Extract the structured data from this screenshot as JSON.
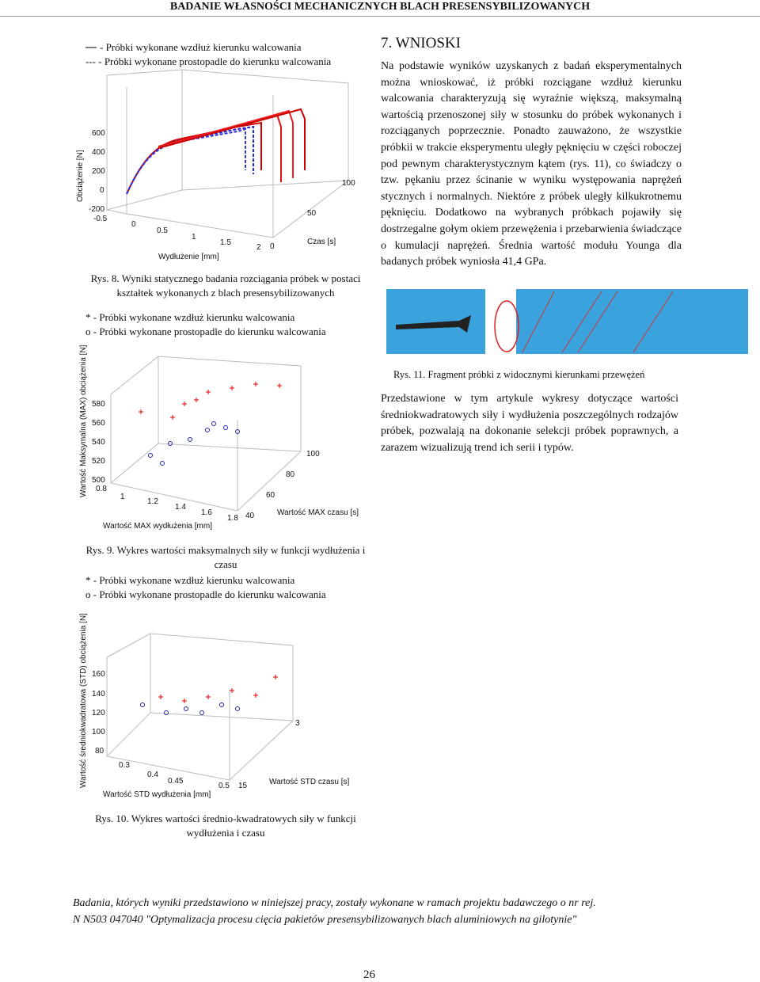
{
  "header": "BADANIE WŁASNOŚCI MECHANICZNYCH BLACH PRESENSYBILIZOWANYCH",
  "figure8": {
    "legend": [
      "- Próbki wykonane wzdłuż kierunku walcowania",
      "--- - Próbki wykonane prostopadle do kierunku walcowania"
    ],
    "y_label": "Obciążenie [N]",
    "x_label": "Wydłużenie [mm]",
    "z_label": "Czas [s]",
    "y_ticks": [
      "600",
      "400",
      "200",
      "0",
      "-200"
    ],
    "x_ticks": [
      "-0.5",
      "0",
      "0.5",
      "1",
      "1.5",
      "2"
    ],
    "z_ticks": [
      "0",
      "50",
      "100"
    ],
    "caption": "Rys. 8. Wyniki statycznego badania rozciągania próbek w postaci kształtek wykonanych z blach presensybilizowanych"
  },
  "figure9": {
    "legend": [
      "* - Próbki wykonane wzdłuż kierunku walcowania",
      "o - Próbki wykonane prostopadle do kierunku walcowania"
    ],
    "y_label": "Wartość Maksymalna (MAX) obciążenia [N]",
    "x_label": "Wartość MAX wydłużenia [mm]",
    "z_label": "Wartość MAX czasu [s]",
    "y_ticks": [
      "580",
      "560",
      "540",
      "520",
      "500"
    ],
    "x_ticks": [
      "0.8",
      "1",
      "1.2",
      "1.4",
      "1.6",
      "1.8"
    ],
    "z_ticks": [
      "40",
      "60",
      "80",
      "100"
    ],
    "caption": "Rys. 9. Wykres wartości maksymalnych siły w funkcji wydłużenia i czasu"
  },
  "figure10": {
    "legend": [
      "* - Próbki wykonane wzdłuż kierunku walcowania",
      "o - Próbki wykonane prostopadle do kierunku walcowania"
    ],
    "y_label": "Wartość średniokwadratowa (STD) obciążenia [N]",
    "x_label": "Wartość STD wydłużenia [mm]",
    "z_label": "Wartość STD czasu [s]",
    "y_ticks": [
      "160",
      "140",
      "120",
      "100",
      "80"
    ],
    "x_ticks": [
      "0.3",
      "0.4",
      "0.45",
      "0.5"
    ],
    "z_ticks": [
      "15",
      "3"
    ],
    "caption": "Rys. 10. Wykres wartości średnio-kwadratowych siły w funkcji wydłużenia i czasu"
  },
  "section": {
    "title": "7. WNIOSKI",
    "paragraph": "Na podstawie wyników uzyskanych z badań eksperymentalnych można wnioskować, iż próbki rozciągane wzdłuż kierunku walcowania charakteryzują się wyraźnie większą, maksymalną wartością przenoszonej siły w stosunku do próbek wykonanych i rozciąganych poprzecznie. Ponadto zauważono, że wszystkie próbkii w trakcie eksperymentu uległy pęknięciu w części roboczej pod pewnym charakterystycznym kątem (rys. 11), co świadczy o tzw. pękaniu przez ścinanie w wyniku występowania naprężeń stycznych i normalnych. Niektóre z próbek uległy kilkukrotnemu pęknięciu. Dodatkowo na wybranych próbkach pojawiły się dostrzegalne gołym okiem przewężenia i przebarwienia świadczące o kumulacji naprężeń. Średnia wartość modułu Younga dla badanych próbek wyniosła 41,4 GPa."
  },
  "figure11": {
    "caption": "Rys. 11. Fragment próbki z widocznymi kierunkami przewężeń"
  },
  "paragraph2": "Przedstawione w tym artykule wykresy dotyczące wartości średniokwadratowych siły i wydłużenia poszczególnych rodzajów próbek, pozwalają na dokonanie selekcji próbek poprawnych, a zarazem wizualizują trend ich serii i typów.",
  "footnote": [
    "Badania, których wyniki przedstawiono w niniejszej pracy, zostały wykonane w ramach projektu badawczego o nr rej.",
    "N N503 047040 \"Optymalizacja procesu cięcia pakietów presensybilizowanych blach aluminiowych na gilotynie\""
  ],
  "page_number": "26"
}
